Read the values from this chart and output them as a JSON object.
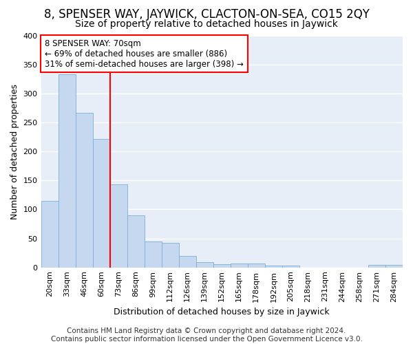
{
  "title": "8, SPENSER WAY, JAYWICK, CLACTON-ON-SEA, CO15 2QY",
  "subtitle": "Size of property relative to detached houses in Jaywick",
  "xlabel": "Distribution of detached houses by size in Jaywick",
  "ylabel": "Number of detached properties",
  "categories": [
    "20sqm",
    "33sqm",
    "46sqm",
    "60sqm",
    "73sqm",
    "86sqm",
    "99sqm",
    "112sqm",
    "126sqm",
    "139sqm",
    "152sqm",
    "165sqm",
    "178sqm",
    "192sqm",
    "205sqm",
    "218sqm",
    "231sqm",
    "244sqm",
    "258sqm",
    "271sqm",
    "284sqm"
  ],
  "values": [
    115,
    333,
    267,
    222,
    143,
    90,
    45,
    42,
    20,
    9,
    6,
    7,
    7,
    3,
    3,
    0,
    0,
    0,
    0,
    4,
    4
  ],
  "bar_color": "#c5d8ef",
  "bar_edge_color": "#7bafd4",
  "vline_color": "red",
  "vline_index": 4,
  "annotation_text": "8 SPENSER WAY: 70sqm\n← 69% of detached houses are smaller (886)\n31% of semi-detached houses are larger (398) →",
  "annotation_box_color": "white",
  "annotation_box_edge": "red",
  "ylim": [
    0,
    400
  ],
  "yticks": [
    0,
    50,
    100,
    150,
    200,
    250,
    300,
    350,
    400
  ],
  "bg_color": "#e8eef7",
  "grid_color": "white",
  "footer": "Contains HM Land Registry data © Crown copyright and database right 2024.\nContains public sector information licensed under the Open Government Licence v3.0.",
  "title_fontsize": 12,
  "subtitle_fontsize": 10,
  "xlabel_fontsize": 9,
  "ylabel_fontsize": 9,
  "tick_fontsize": 8,
  "footer_fontsize": 7.5,
  "annotation_fontsize": 8.5
}
